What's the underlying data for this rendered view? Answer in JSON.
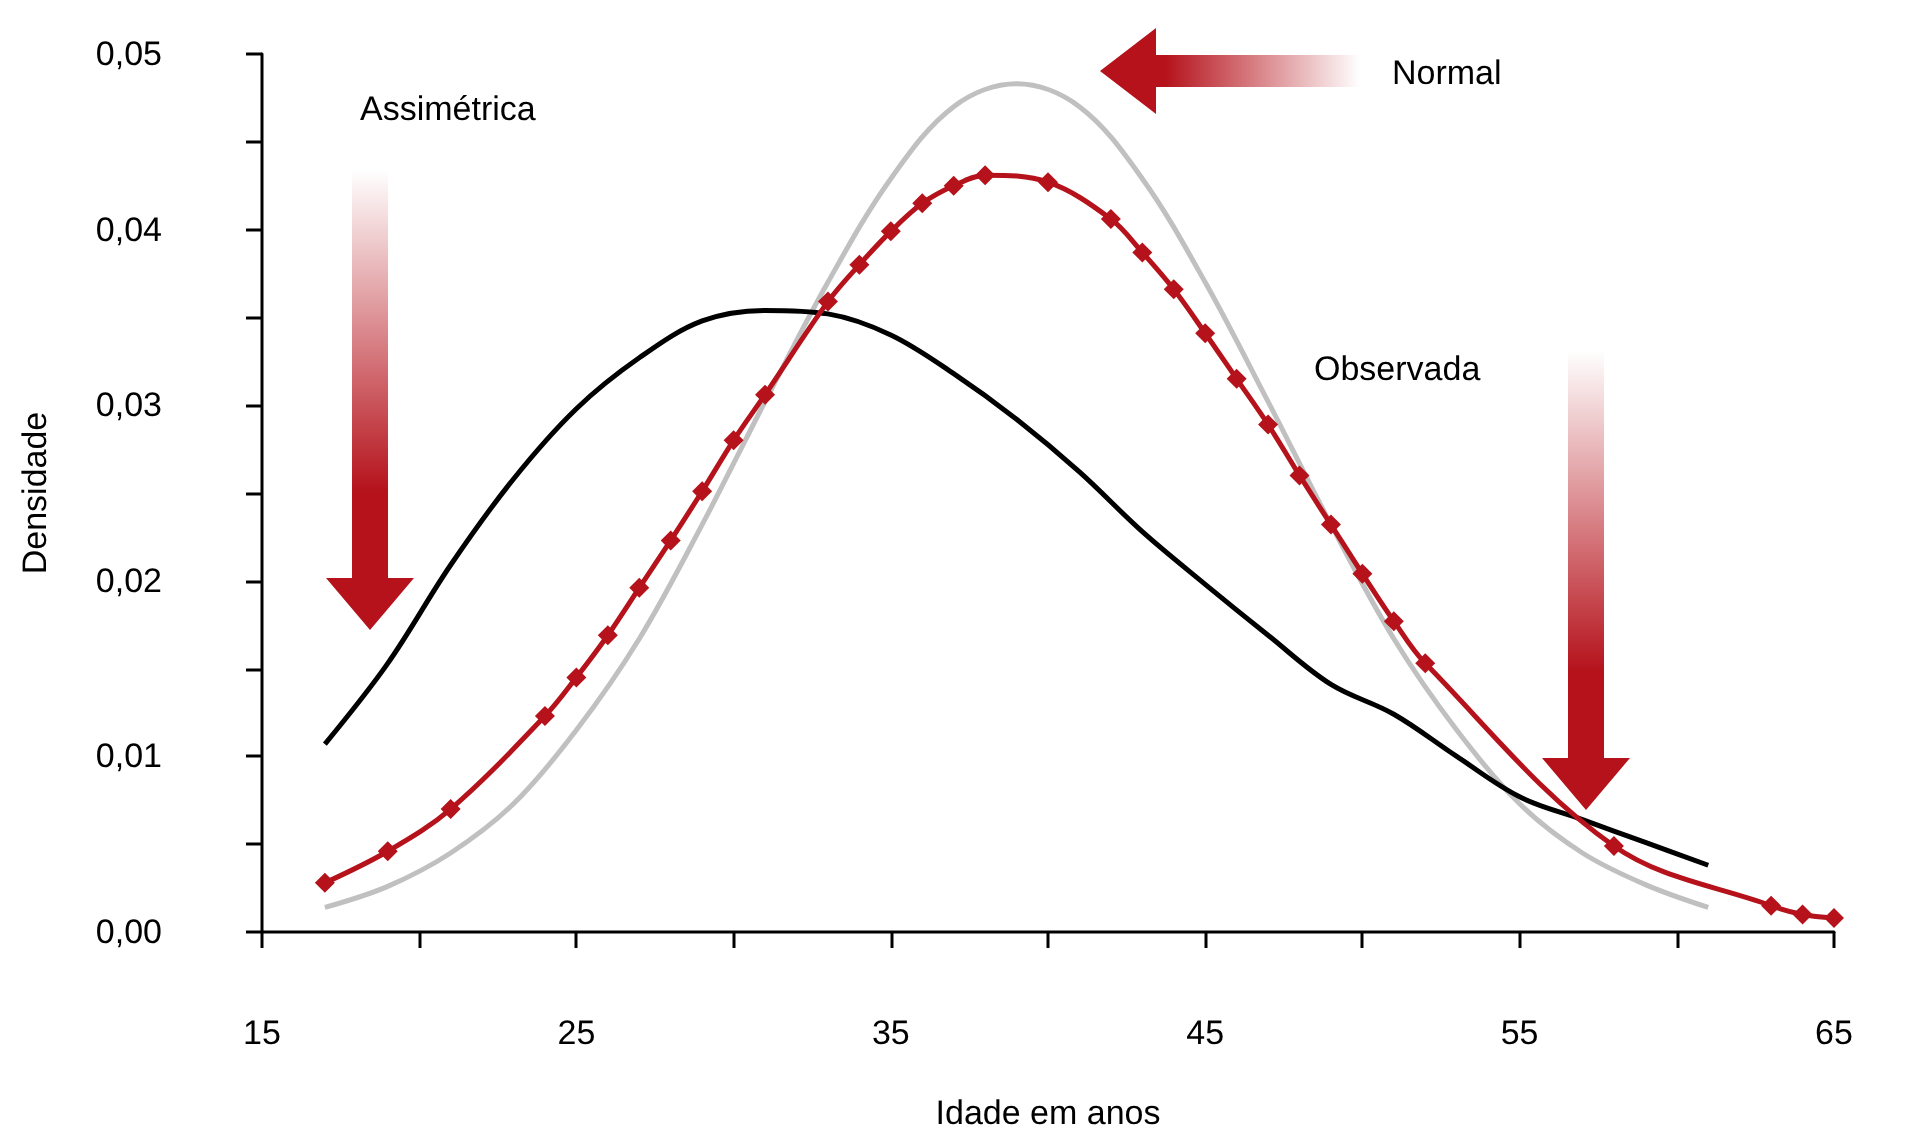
{
  "chart_data": {
    "type": "line",
    "xlabel": "Idade em anos",
    "ylabel": "Densidade",
    "xlim": [
      15,
      65
    ],
    "xticks": [
      15,
      {
        "value": 20,
        "label": null
      },
      25,
      {
        "value": 30,
        "label": null
      },
      35,
      {
        "value": 40,
        "label": null
      },
      45,
      {
        "value": 50,
        "label": null
      },
      55,
      {
        "value": 60,
        "label": null
      },
      65
    ],
    "ylim": [
      0,
      0.05
    ],
    "yticks": [
      {
        "value": 0,
        "label": "0,00"
      },
      {
        "value": 0.005,
        "label": null
      },
      {
        "value": 0.01,
        "label": "0,01"
      },
      {
        "value": 0.015,
        "label": null
      },
      {
        "value": 0.02,
        "label": "0,02"
      },
      {
        "value": 0.025,
        "label": null
      },
      {
        "value": 0.03,
        "label": "0,03"
      },
      {
        "value": 0.035,
        "label": null
      },
      {
        "value": 0.04,
        "label": "0,04"
      },
      {
        "value": 0.045,
        "label": null
      },
      {
        "value": 0.05,
        "label": "0,05"
      }
    ],
    "grid": false,
    "annotations": [
      "Assimétrica",
      "Normal",
      "Observada"
    ],
    "series": [
      {
        "color": "#c0c0c0",
        "marker": "none",
        "x": [
          17,
          19,
          21,
          23,
          25,
          27,
          29,
          31,
          33,
          35,
          37,
          39,
          41,
          43,
          45,
          47,
          49,
          51,
          53,
          55,
          57,
          59,
          61
        ],
        "values": [
          0.0014,
          0.0026,
          0.0045,
          0.0073,
          0.0115,
          0.0167,
          0.0232,
          0.0302,
          0.037,
          0.0429,
          0.047,
          0.0483,
          0.047,
          0.0429,
          0.037,
          0.0302,
          0.0232,
          0.0167,
          0.0115,
          0.0073,
          0.0045,
          0.0027,
          0.0014
        ]
      },
      {
        "color": "#000000",
        "marker": "none",
        "x": [
          17,
          19,
          21,
          23,
          25,
          27,
          29,
          31,
          33,
          35,
          37,
          39,
          41,
          43,
          45,
          47,
          49,
          51,
          53,
          55,
          57,
          59,
          61
        ],
        "values": [
          0.0107,
          0.0153,
          0.0209,
          0.0258,
          0.0298,
          0.0327,
          0.0348,
          0.0354,
          0.0352,
          0.034,
          0.0318,
          0.0292,
          0.0262,
          0.0228,
          0.0198,
          0.0169,
          0.0141,
          0.0124,
          0.01,
          0.0077,
          0.0064,
          0.0051,
          0.0038
        ]
      },
      {
        "color": "#b5121b",
        "marker": "diamond",
        "x": [
          17,
          19,
          21,
          24,
          25,
          26,
          27,
          28,
          29,
          30,
          31,
          33,
          34,
          35,
          36,
          37,
          38,
          40,
          42,
          43,
          44,
          45,
          46,
          47,
          48,
          49,
          50,
          51,
          52,
          58,
          63,
          64,
          65
        ],
        "values": [
          0.0028,
          0.0046,
          0.007,
          0.0123,
          0.0145,
          0.0169,
          0.0196,
          0.0223,
          0.0251,
          0.028,
          0.0306,
          0.0359,
          0.038,
          0.0399,
          0.0415,
          0.0425,
          0.0431,
          0.0427,
          0.0406,
          0.0387,
          0.0366,
          0.0341,
          0.0315,
          0.0289,
          0.026,
          0.0232,
          0.0204,
          0.0177,
          0.0153,
          0.0049,
          0.0015,
          0.001,
          0.0008
        ]
      }
    ]
  }
}
